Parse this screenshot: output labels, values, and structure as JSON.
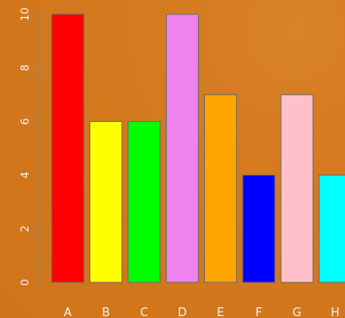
{
  "chart_data": {
    "type": "bar",
    "title": "",
    "xlabel": "",
    "ylabel": "",
    "categories": [
      "A",
      "B",
      "C",
      "D",
      "E",
      "F",
      "G",
      "H"
    ],
    "values": [
      10,
      6,
      6,
      10,
      7,
      4,
      7,
      4
    ],
    "colors": [
      "#ff0000",
      "#ffff00",
      "#00ff00",
      "#ee82ee",
      "#ffa500",
      "#0000ff",
      "#ffc0cb",
      "#00ffff"
    ],
    "ylim": [
      0,
      10
    ],
    "yticks": [
      0,
      2,
      4,
      6,
      8,
      10
    ],
    "ytick_labels": [
      "0",
      "2",
      "4",
      "6",
      "8",
      "10"
    ],
    "grid": false,
    "background": "#d67a1f"
  }
}
